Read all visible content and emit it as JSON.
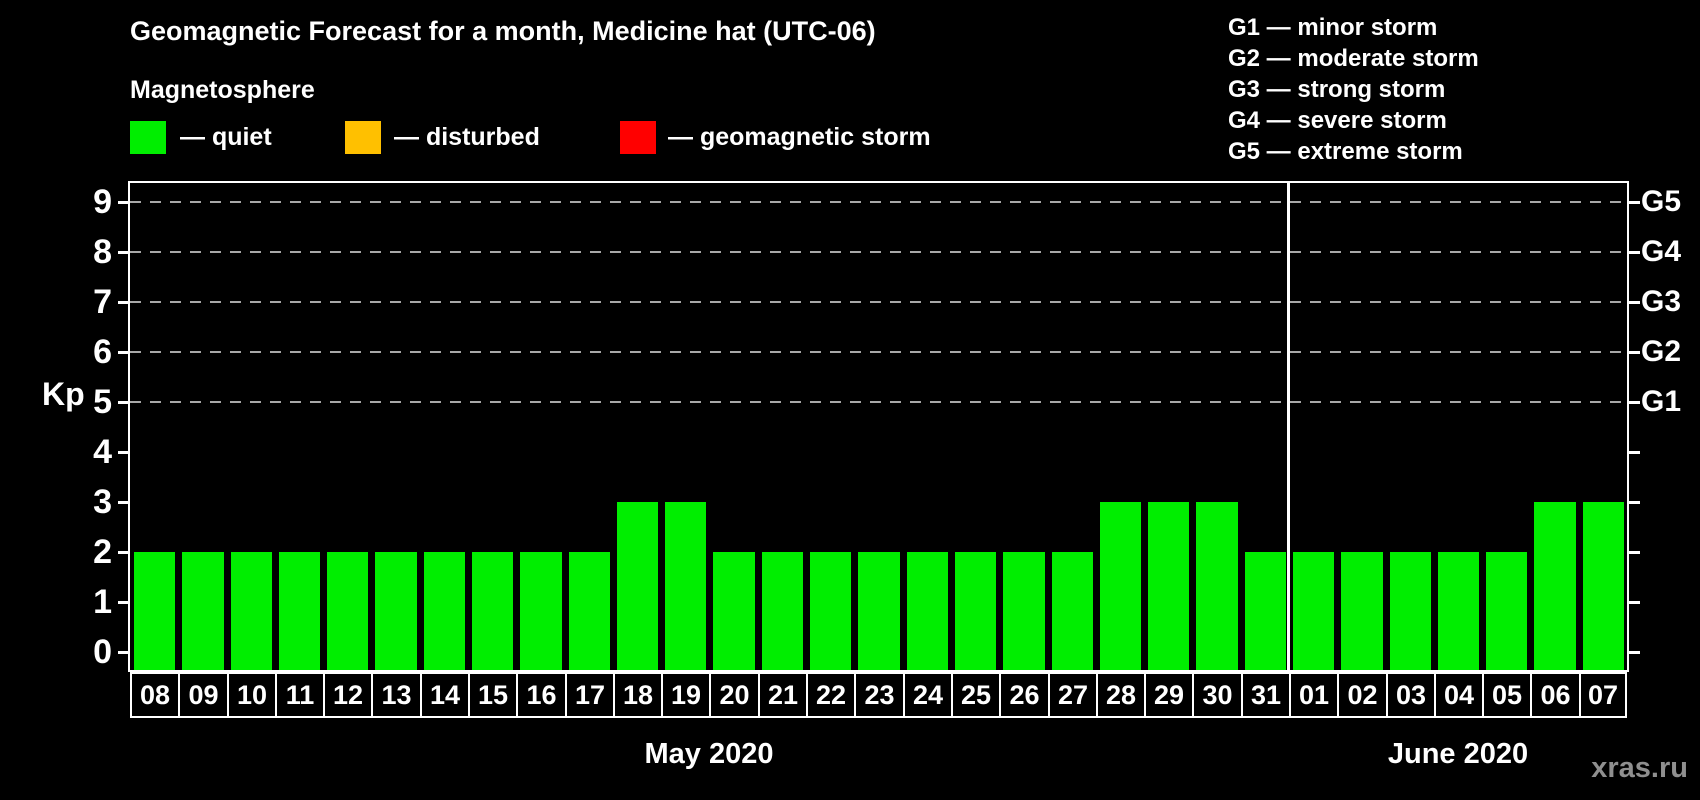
{
  "page": {
    "background": "#000000",
    "watermark": "xras.ru"
  },
  "header": {
    "title": "Geomagnetic Forecast for a month, Medicine hat (UTC-06)",
    "subtitle": "Magnetosphere"
  },
  "legend": {
    "items": [
      {
        "name": "quiet",
        "color": "#00ee00",
        "label": "— quiet"
      },
      {
        "name": "disturbed",
        "color": "#ffc000",
        "label": "— disturbed"
      },
      {
        "name": "geomagnetic-storm",
        "color": "#ff0000",
        "label": "— geomagnetic storm"
      }
    ]
  },
  "g_scale_legend": {
    "items": [
      "G1 — minor storm",
      "G2 — moderate storm",
      "G3 — strong storm",
      "G4 — severe storm",
      "G5 — extreme storm"
    ]
  },
  "chart_data": {
    "type": "bar",
    "title": "Geomagnetic Forecast for a month, Medicine hat (UTC-06)",
    "xlabel": "",
    "ylabel": "Kp",
    "ylim": [
      0,
      9
    ],
    "yticks": [
      0,
      1,
      2,
      3,
      4,
      5,
      6,
      7,
      8,
      9
    ],
    "gridlines_at": [
      5,
      6,
      7,
      8,
      9
    ],
    "grid": "dashed-horizontal",
    "legend_position": "top",
    "bar_color": "#00ee00",
    "right_axis": {
      "labels": [
        "G1",
        "G2",
        "G3",
        "G4",
        "G5"
      ],
      "positions": [
        5,
        6,
        7,
        8,
        9
      ]
    },
    "groups": [
      {
        "month": "May 2020",
        "days": [
          "08",
          "09",
          "10",
          "11",
          "12",
          "13",
          "14",
          "15",
          "16",
          "17",
          "18",
          "19",
          "20",
          "21",
          "22",
          "23",
          "24",
          "25",
          "26",
          "27",
          "28",
          "29",
          "30",
          "31"
        ],
        "values": [
          2,
          2,
          2,
          2,
          2,
          2,
          2,
          2,
          2,
          2,
          3,
          3,
          2,
          2,
          2,
          2,
          2,
          2,
          2,
          2,
          3,
          3,
          3,
          2
        ]
      },
      {
        "month": "June 2020",
        "days": [
          "01",
          "02",
          "03",
          "04",
          "05",
          "06",
          "07"
        ],
        "values": [
          2,
          2,
          2,
          2,
          2,
          3,
          3
        ]
      }
    ]
  }
}
